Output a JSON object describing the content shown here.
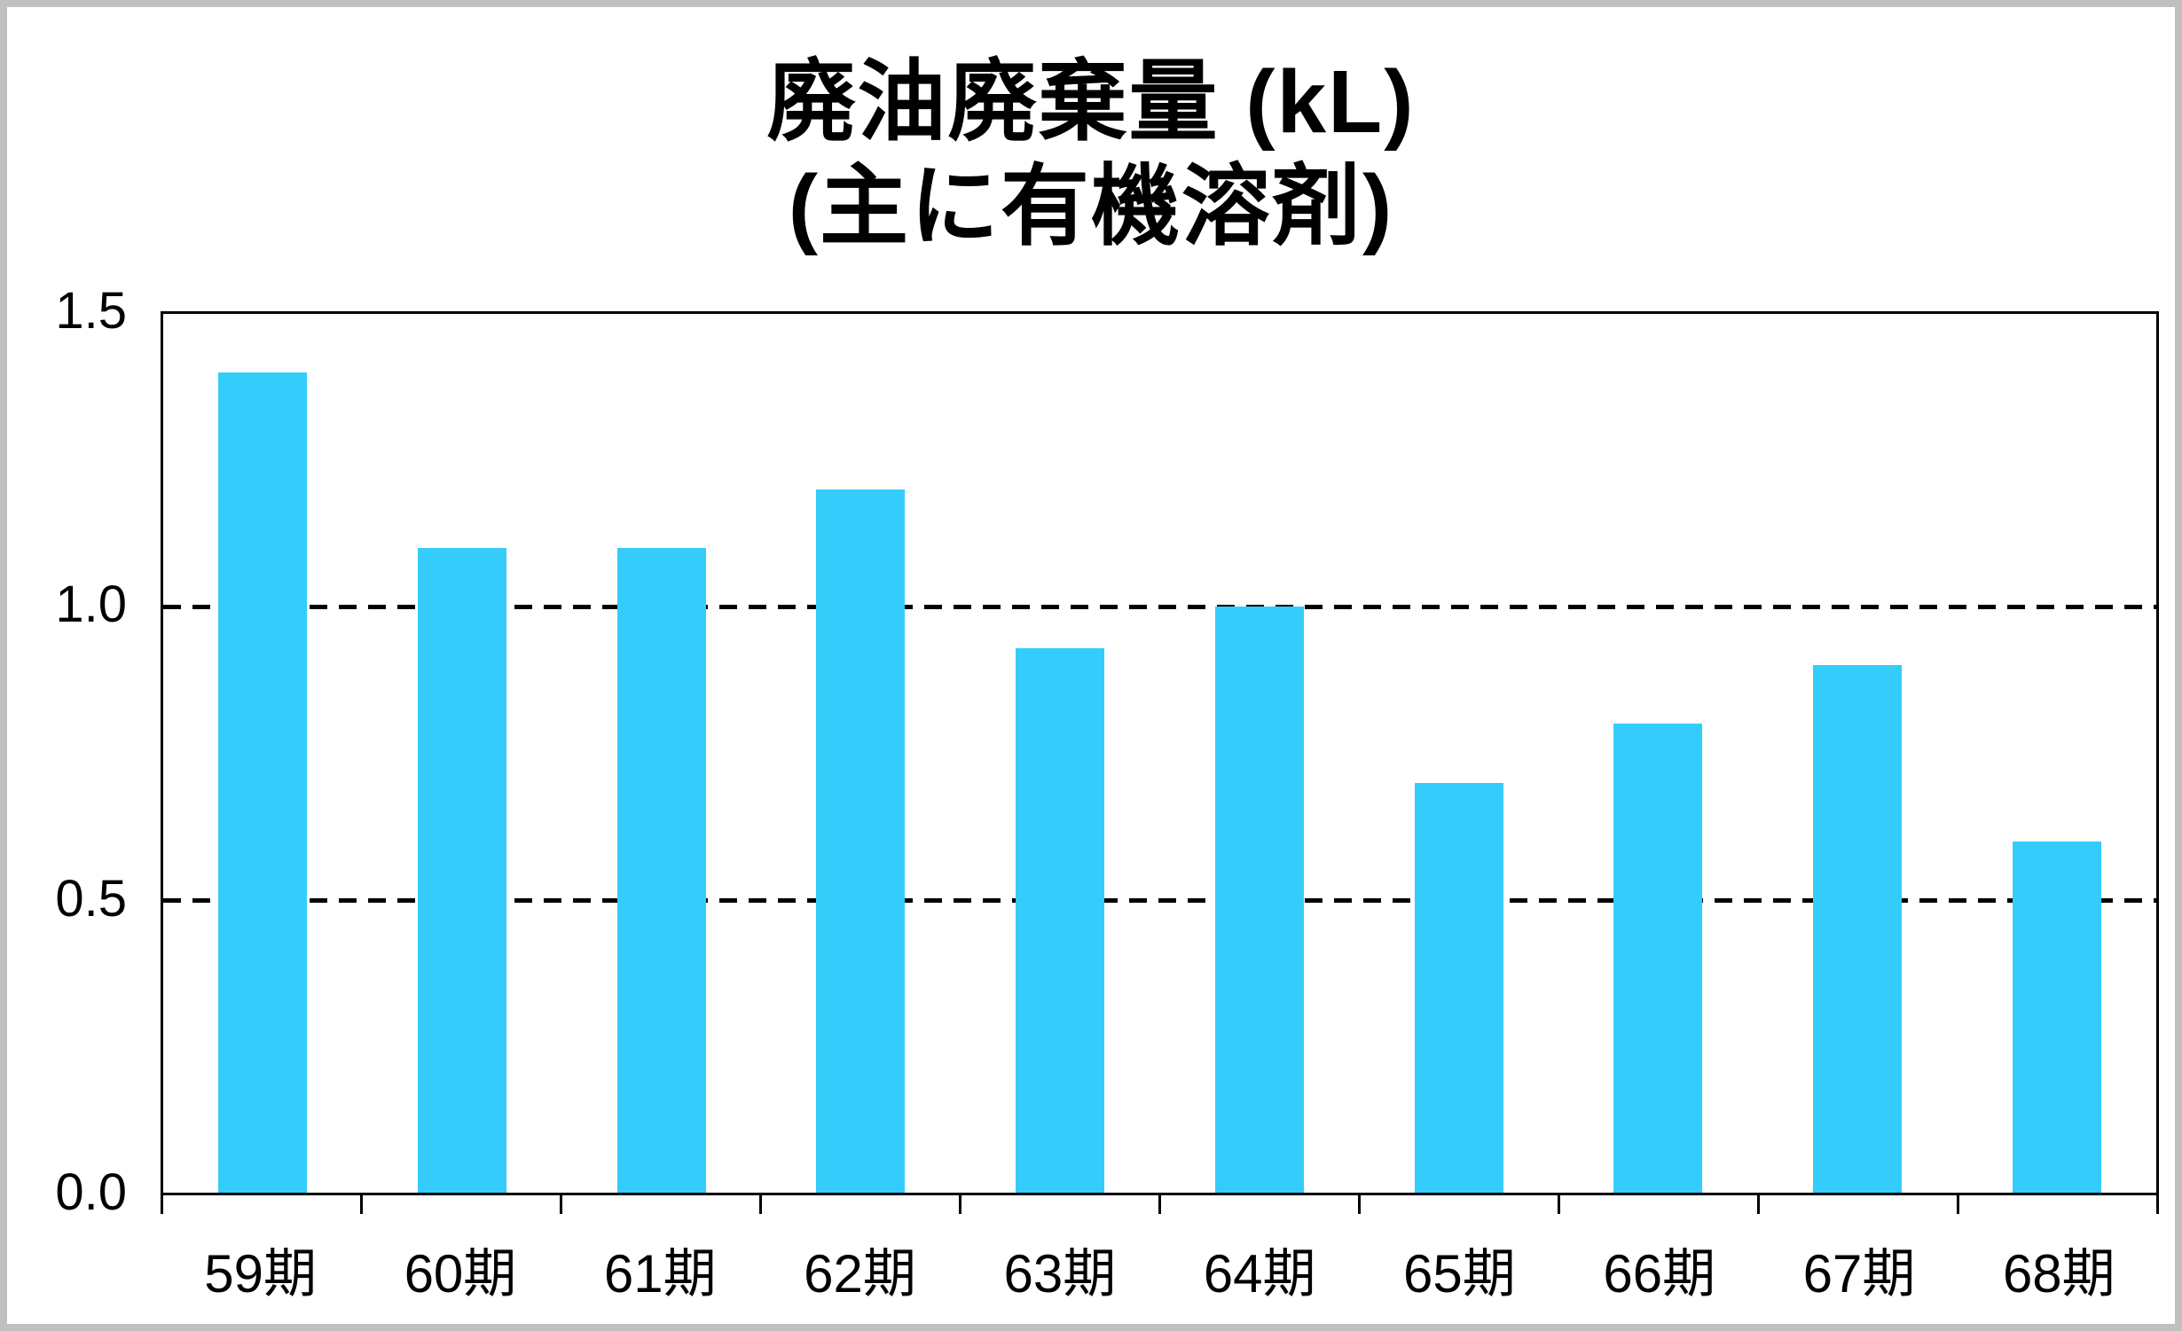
{
  "frame": {
    "border_color": "#c0c0c0",
    "background_color": "#ffffff"
  },
  "chart_data": {
    "type": "bar",
    "title": "廃油廃棄量 (kL)",
    "subtitle": "(主に有機溶剤)",
    "categories": [
      "59期",
      "60期",
      "61期",
      "62期",
      "63期",
      "64期",
      "65期",
      "66期",
      "67期",
      "68期"
    ],
    "values": [
      1.4,
      1.1,
      1.1,
      1.2,
      0.93,
      1.0,
      0.7,
      0.8,
      0.9,
      0.6
    ],
    "xlabel": "",
    "ylabel": "",
    "ylim": [
      0,
      1.5
    ],
    "yticks": [
      0.0,
      0.5,
      1.0,
      1.5
    ],
    "ytick_labels": [
      "0.0",
      "0.5",
      "1.0",
      "1.5"
    ],
    "gridlines": [
      0.5,
      1.0
    ],
    "grid_style": "dashed",
    "legend": "none",
    "bar_color": "#34ccfa",
    "axis_color": "#000000",
    "text_color": "#000000"
  }
}
